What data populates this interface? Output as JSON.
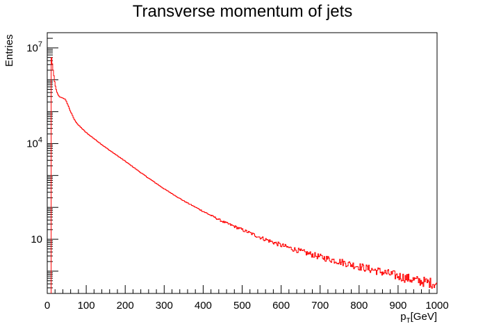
{
  "chart_data": {
    "type": "line",
    "title": "Transverse momentum of jets",
    "ylabel": "Entries",
    "xlabel": {
      "main": "p",
      "sub": "T",
      "unit": "[GeV]"
    },
    "x_ticks": [
      "0",
      "100",
      "200",
      "300",
      "400",
      "500",
      "600",
      "700",
      "800",
      "900",
      "1000"
    ],
    "y_ticks": [
      {
        "value": 10,
        "base": "10",
        "exp": ""
      },
      {
        "value": 10000,
        "base": "10",
        "exp": "4"
      },
      {
        "value": 10000000,
        "base": "10",
        "exp": "7"
      }
    ],
    "xlim": [
      0,
      1000
    ],
    "ylim": [
      0.2,
      30000000
    ],
    "log_y": true,
    "grid": false,
    "legend": "none",
    "line_color": "#ff0000",
    "series": [
      {
        "x": [
          10,
          12,
          15,
          20,
          25,
          30,
          35,
          40,
          45,
          50,
          60,
          70,
          80,
          100,
          150,
          200,
          250,
          300,
          350,
          400,
          450,
          500,
          550,
          600,
          650,
          700,
          750,
          800,
          850,
          900,
          950,
          1000
        ],
        "values": [
          6000000,
          4000000,
          2000000,
          700000,
          400000,
          300000,
          280000,
          270000,
          250000,
          200000,
          100000,
          55000,
          38000,
          22000,
          7500,
          2800,
          1000,
          380,
          160,
          75,
          36,
          20,
          11,
          6.5,
          4.2,
          2.8,
          2.0,
          1.4,
          1.0,
          0.7,
          0.5,
          0.4
        ]
      }
    ]
  }
}
